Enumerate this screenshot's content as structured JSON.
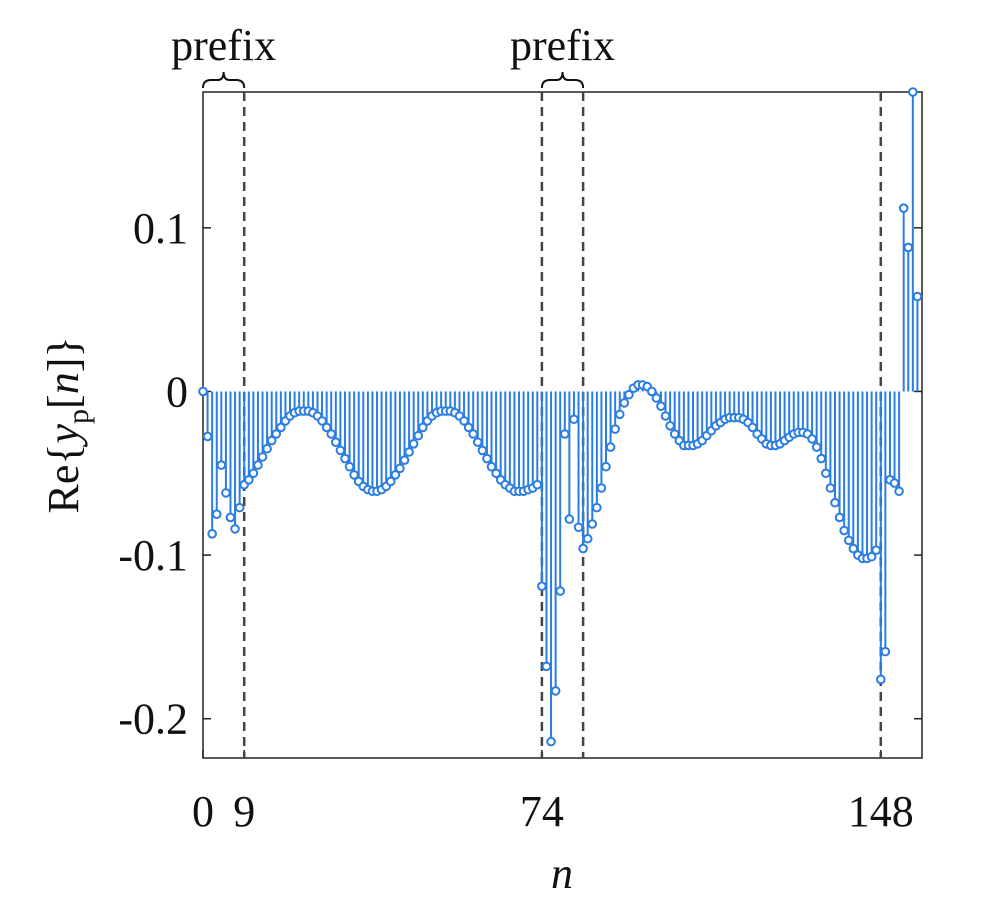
{
  "chart_data": {
    "type": "stem",
    "xlabel": "n",
    "ylabel": [
      "Re{",
      "y",
      "p",
      "[",
      "n",
      "]}"
    ],
    "color": "#2a7de1",
    "xlim": [
      0,
      157
    ],
    "ylim": [
      -0.224,
      0.183
    ],
    "xticks": [
      0,
      9,
      74,
      148
    ],
    "yticks": [
      -0.2,
      -0.1,
      0,
      0.1
    ],
    "dashed_lines": [
      9,
      74,
      83,
      148
    ],
    "annotations": [
      {
        "text": "prefix",
        "x": [
          0,
          9
        ]
      },
      {
        "text": "prefix",
        "x": [
          74,
          83
        ]
      }
    ],
    "values": [
      0,
      -0.0275,
      -0.087,
      -0.075,
      -0.045,
      -0.062,
      -0.077,
      -0.084,
      -0.071,
      -0.057,
      -0.054,
      -0.05,
      -0.045,
      -0.04,
      -0.035,
      -0.03,
      -0.026,
      -0.022,
      -0.018,
      -0.015,
      -0.013,
      -0.012,
      -0.012,
      -0.012,
      -0.013,
      -0.015,
      -0.018,
      -0.022,
      -0.026,
      -0.031,
      -0.036,
      -0.041,
      -0.046,
      -0.051,
      -0.055,
      -0.058,
      -0.06,
      -0.061,
      -0.061,
      -0.06,
      -0.058,
      -0.055,
      -0.051,
      -0.047,
      -0.042,
      -0.037,
      -0.032,
      -0.027,
      -0.022,
      -0.018,
      -0.015,
      -0.013,
      -0.012,
      -0.012,
      -0.012,
      -0.013,
      -0.015,
      -0.018,
      -0.022,
      -0.026,
      -0.031,
      -0.036,
      -0.041,
      -0.046,
      -0.05,
      -0.054,
      -0.057,
      -0.059,
      -0.061,
      -0.061,
      -0.061,
      -0.06,
      -0.059,
      -0.057,
      -0.119,
      -0.168,
      -0.214,
      -0.183,
      -0.122,
      -0.026,
      -0.078,
      -0.017,
      -0.083,
      -0.096,
      -0.09,
      -0.081,
      -0.071,
      -0.059,
      -0.046,
      -0.034,
      -0.023,
      -0.014,
      -0.007,
      -0.002,
      0.002,
      0.004,
      0.004,
      0.003,
      0.0,
      -0.004,
      -0.009,
      -0.015,
      -0.021,
      -0.026,
      -0.03,
      -0.033,
      -0.033,
      -0.033,
      -0.032,
      -0.03,
      -0.027,
      -0.024,
      -0.021,
      -0.019,
      -0.017,
      -0.016,
      -0.016,
      -0.016,
      -0.017,
      -0.019,
      -0.022,
      -0.026,
      -0.029,
      -0.032,
      -0.033,
      -0.033,
      -0.032,
      -0.03,
      -0.028,
      -0.026,
      -0.025,
      -0.025,
      -0.026,
      -0.029,
      -0.034,
      -0.041,
      -0.05,
      -0.059,
      -0.068,
      -0.077,
      -0.085,
      -0.091,
      -0.096,
      -0.1,
      -0.102,
      -0.102,
      -0.101,
      -0.097,
      -0.176,
      -0.159,
      -0.054,
      -0.056,
      -0.061,
      0.112,
      0.088,
      0.183,
      0.058
    ]
  }
}
